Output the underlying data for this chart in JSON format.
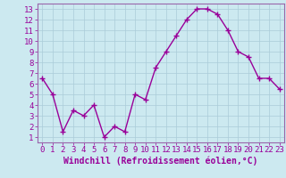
{
  "x": [
    0,
    1,
    2,
    3,
    4,
    5,
    6,
    7,
    8,
    9,
    10,
    11,
    12,
    13,
    14,
    15,
    16,
    17,
    18,
    19,
    20,
    21,
    22,
    23
  ],
  "y": [
    6.5,
    5.0,
    1.5,
    3.5,
    3.0,
    4.0,
    1.0,
    2.0,
    1.5,
    5.0,
    4.5,
    7.5,
    9.0,
    10.5,
    12.0,
    13.0,
    13.0,
    12.5,
    11.0,
    9.0,
    8.5,
    6.5,
    6.5,
    5.5
  ],
  "line_color": "#990099",
  "marker": "+",
  "markersize": 4,
  "linewidth": 1.0,
  "xlabel": "Windchill (Refroidissement éolien,°C)",
  "xlabel_fontsize": 7,
  "ylabel_ticks": [
    1,
    2,
    3,
    4,
    5,
    6,
    7,
    8,
    9,
    10,
    11,
    12,
    13
  ],
  "xlim": [
    -0.5,
    23.5
  ],
  "ylim": [
    0.5,
    13.5
  ],
  "background_color": "#cce9f0",
  "grid_color": "#aaccd8",
  "tick_fontsize": 6.5,
  "border_color": "#9966aa"
}
